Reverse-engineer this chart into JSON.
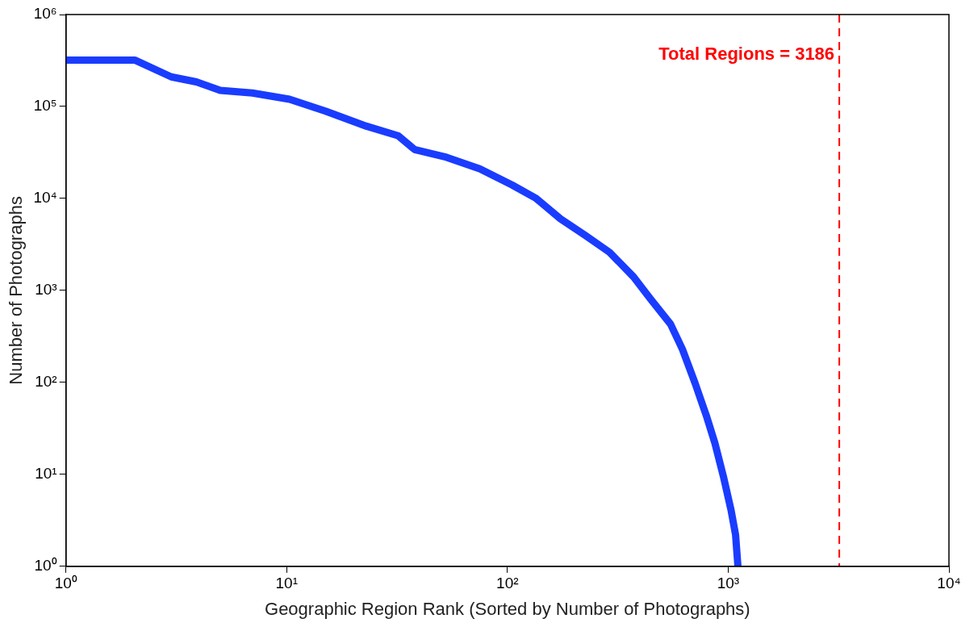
{
  "chart_data": {
    "type": "line",
    "xlabel": "Geographic Region Rank (Sorted by Number of Photographs)",
    "ylabel": "Number of Photographs",
    "log": "xy",
    "grid": false,
    "legend": false,
    "marker": "none",
    "line_style": "solid",
    "xlim": [
      1,
      10000
    ],
    "xticks": [
      {
        "value": 1,
        "label": "10⁰"
      },
      {
        "value": 10,
        "label": "10¹"
      },
      {
        "value": 100,
        "label": "10²"
      },
      {
        "value": 1000,
        "label": "10³"
      },
      {
        "value": 10000,
        "label": "10⁴"
      }
    ],
    "ylim": [
      1,
      1000000
    ],
    "yticks": [
      {
        "value": 1,
        "label": "10⁰"
      },
      {
        "value": 10,
        "label": "10¹"
      },
      {
        "value": 100,
        "label": "10²"
      },
      {
        "value": 1000,
        "label": "10³"
      },
      {
        "value": 10000,
        "label": "10⁴"
      },
      {
        "value": 100000,
        "label": "10⁵"
      },
      {
        "value": 1000000,
        "label": "10⁶"
      }
    ],
    "series": [
      {
        "color": "#1a3cff",
        "x": [
          1,
          2.05,
          3,
          3.9,
          5,
          7,
          10.3,
          15,
          23,
          32,
          38,
          53,
          75,
          105,
          135,
          174,
          224,
          290,
          373,
          444,
          548,
          620,
          708,
          800,
          870,
          950,
          1030,
          1080,
          1107
        ],
        "values": [
          320000,
          320000,
          210000,
          185000,
          150000,
          140000,
          120000,
          89000,
          61000,
          48000,
          34000,
          28000,
          21000,
          14000,
          10000,
          6000,
          4000,
          2600,
          1400,
          810,
          430,
          230,
          98,
          42,
          22,
          9.6,
          4.1,
          2.2,
          1
        ]
      }
    ],
    "ref_lines": [
      {
        "axis": "x",
        "value": 3186,
        "label": "Total Regions = 3186",
        "color": "#ff0000",
        "line_style": "dashed"
      }
    ]
  }
}
